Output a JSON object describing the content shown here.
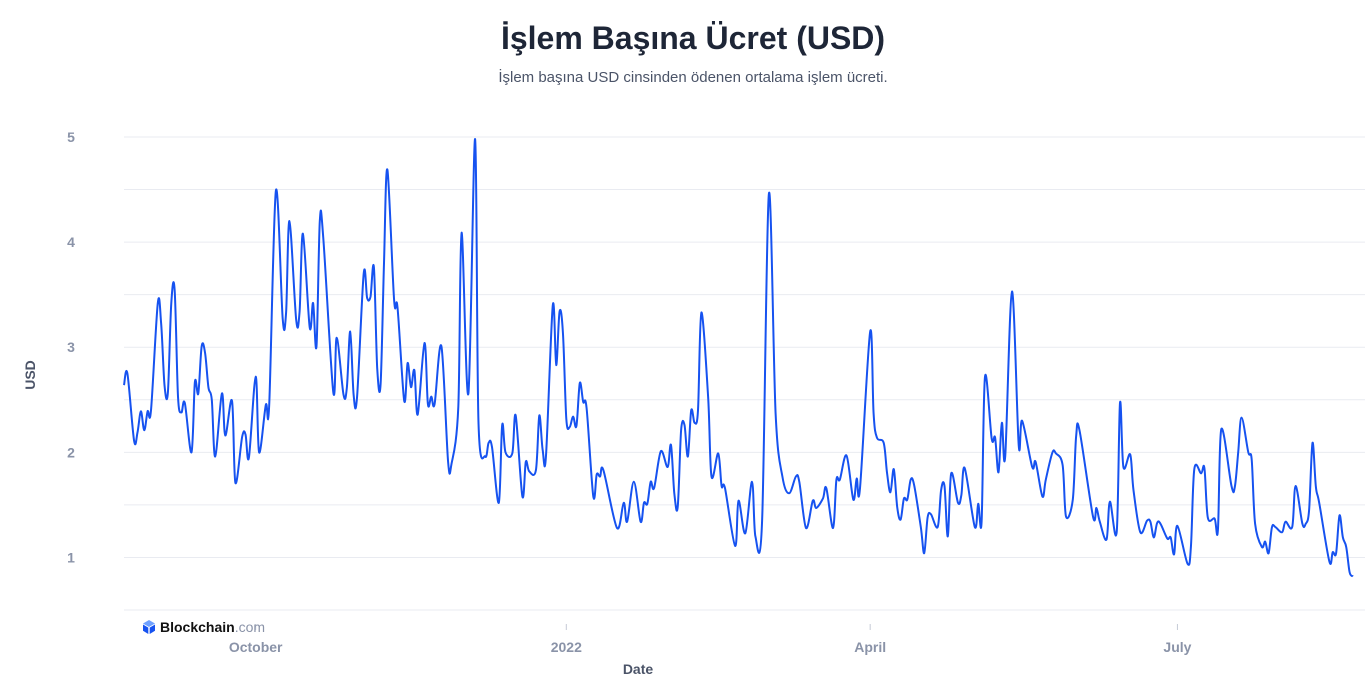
{
  "header": {
    "title": "İşlem Başına Ücret (USD)",
    "subtitle": "İşlem başına USD cinsinden ödenen ortalama işlem ücreti."
  },
  "logo": {
    "brand": "Blockchain",
    "suffix": ".com",
    "icon": "blockchain-cube-icon"
  },
  "colors": {
    "line": "#1652F0",
    "grid": "#e9ebf1",
    "tick_text": "#8a93a8"
  },
  "chart_data": {
    "type": "line",
    "title": "İşlem Başına Ücret (USD)",
    "subtitle": "İşlem başına USD cinsinden ödenen ortalama işlem ücreti.",
    "xlabel": "Date",
    "ylabel": "USD",
    "xlim": [
      "2021-08-23",
      "2022-08-22"
    ],
    "ylim": [
      0.5,
      5
    ],
    "grid": true,
    "y_ticks": [
      "1",
      "2",
      "3",
      "4",
      "5"
    ],
    "x_ticks": [
      {
        "date": "2021-10-01",
        "label": "October"
      },
      {
        "date": "2022-01-01",
        "label": "2022"
      },
      {
        "date": "2022-04-01",
        "label": "April"
      },
      {
        "date": "2022-07-01",
        "label": "July"
      }
    ],
    "series": [
      {
        "points": [
          [
            "2021-08-23",
            2.64
          ],
          [
            "2021-08-24",
            2.75
          ],
          [
            "2021-08-26",
            2.11
          ],
          [
            "2021-08-27",
            2.19
          ],
          [
            "2021-08-28",
            2.39
          ],
          [
            "2021-08-29",
            2.21
          ],
          [
            "2021-08-30",
            2.39
          ],
          [
            "2021-08-31",
            2.4
          ],
          [
            "2021-09-02",
            3.42
          ],
          [
            "2021-09-03",
            3.23
          ],
          [
            "2021-09-04",
            2.64
          ],
          [
            "2021-09-05",
            2.57
          ],
          [
            "2021-09-06",
            3.42
          ],
          [
            "2021-09-07",
            3.55
          ],
          [
            "2021-09-08",
            2.53
          ],
          [
            "2021-09-09",
            2.38
          ],
          [
            "2021-09-10",
            2.47
          ],
          [
            "2021-09-12",
            2.0
          ],
          [
            "2021-09-13",
            2.67
          ],
          [
            "2021-09-14",
            2.56
          ],
          [
            "2021-09-15",
            3.01
          ],
          [
            "2021-09-16",
            2.95
          ],
          [
            "2021-09-17",
            2.62
          ],
          [
            "2021-09-18",
            2.5
          ],
          [
            "2021-09-19",
            1.96
          ],
          [
            "2021-09-21",
            2.56
          ],
          [
            "2021-09-22",
            2.16
          ],
          [
            "2021-09-24",
            2.49
          ],
          [
            "2021-09-25",
            1.71
          ],
          [
            "2021-09-27",
            2.15
          ],
          [
            "2021-09-28",
            2.17
          ],
          [
            "2021-09-29",
            1.95
          ],
          [
            "2021-10-01",
            2.72
          ],
          [
            "2021-10-02",
            2.0
          ],
          [
            "2021-10-04",
            2.45
          ],
          [
            "2021-10-05",
            2.45
          ],
          [
            "2021-10-07",
            4.49
          ],
          [
            "2021-10-09",
            3.27
          ],
          [
            "2021-10-10",
            3.33
          ],
          [
            "2021-10-11",
            4.2
          ],
          [
            "2021-10-13",
            3.26
          ],
          [
            "2021-10-14",
            3.34
          ],
          [
            "2021-10-15",
            4.08
          ],
          [
            "2021-10-17",
            3.19
          ],
          [
            "2021-10-18",
            3.42
          ],
          [
            "2021-10-19",
            3.01
          ],
          [
            "2021-10-20",
            4.2
          ],
          [
            "2021-10-21",
            4.05
          ],
          [
            "2021-10-24",
            2.57
          ],
          [
            "2021-10-25",
            3.09
          ],
          [
            "2021-10-27",
            2.55
          ],
          [
            "2021-10-28",
            2.61
          ],
          [
            "2021-10-29",
            3.15
          ],
          [
            "2021-10-30",
            2.55
          ],
          [
            "2021-10-31",
            2.52
          ],
          [
            "2021-11-02",
            3.7
          ],
          [
            "2021-11-03",
            3.47
          ],
          [
            "2021-11-04",
            3.48
          ],
          [
            "2021-11-05",
            3.76
          ],
          [
            "2021-11-06",
            2.8
          ],
          [
            "2021-11-07",
            2.65
          ],
          [
            "2021-11-08",
            3.8
          ],
          [
            "2021-11-09",
            4.69
          ],
          [
            "2021-11-11",
            3.45
          ],
          [
            "2021-11-12",
            3.38
          ],
          [
            "2021-11-14",
            2.49
          ],
          [
            "2021-11-15",
            2.85
          ],
          [
            "2021-11-16",
            2.62
          ],
          [
            "2021-11-17",
            2.78
          ],
          [
            "2021-11-18",
            2.36
          ],
          [
            "2021-11-20",
            3.04
          ],
          [
            "2021-11-21",
            2.46
          ],
          [
            "2021-11-22",
            2.53
          ],
          [
            "2021-11-23",
            2.46
          ],
          [
            "2021-11-25",
            3.01
          ],
          [
            "2021-11-27",
            1.91
          ],
          [
            "2021-11-28",
            1.89
          ],
          [
            "2021-11-30",
            2.43
          ],
          [
            "2021-12-01",
            4.09
          ],
          [
            "2021-12-03",
            2.56
          ],
          [
            "2021-12-05",
            4.98
          ],
          [
            "2021-12-06",
            2.28
          ],
          [
            "2021-12-08",
            1.96
          ],
          [
            "2021-12-09",
            2.09
          ],
          [
            "2021-12-10",
            2.05
          ],
          [
            "2021-12-12",
            1.52
          ],
          [
            "2021-12-13",
            2.26
          ],
          [
            "2021-12-14",
            2.0
          ],
          [
            "2021-12-16",
            1.99
          ],
          [
            "2021-12-17",
            2.35
          ],
          [
            "2021-12-19",
            1.58
          ],
          [
            "2021-12-20",
            1.91
          ],
          [
            "2021-12-21",
            1.82
          ],
          [
            "2021-12-23",
            1.83
          ],
          [
            "2021-12-24",
            2.35
          ],
          [
            "2021-12-25",
            2.02
          ],
          [
            "2021-12-26",
            1.97
          ],
          [
            "2021-12-28",
            3.4
          ],
          [
            "2021-12-29",
            2.83
          ],
          [
            "2021-12-30",
            3.34
          ],
          [
            "2021-12-31",
            3.14
          ],
          [
            "2022-01-01",
            2.32
          ],
          [
            "2022-01-02",
            2.24
          ],
          [
            "2022-01-03",
            2.34
          ],
          [
            "2022-01-04",
            2.25
          ],
          [
            "2022-01-05",
            2.66
          ],
          [
            "2022-01-06",
            2.48
          ],
          [
            "2022-01-07",
            2.42
          ],
          [
            "2022-01-09",
            1.58
          ],
          [
            "2022-01-10",
            1.79
          ],
          [
            "2022-01-11",
            1.77
          ],
          [
            "2022-01-12",
            1.83
          ],
          [
            "2022-01-16",
            1.28
          ],
          [
            "2022-01-18",
            1.52
          ],
          [
            "2022-01-19",
            1.34
          ],
          [
            "2022-01-21",
            1.72
          ],
          [
            "2022-01-23",
            1.34
          ],
          [
            "2022-01-24",
            1.52
          ],
          [
            "2022-01-25",
            1.51
          ],
          [
            "2022-01-26",
            1.72
          ],
          [
            "2022-01-27",
            1.66
          ],
          [
            "2022-01-29",
            2.01
          ],
          [
            "2022-01-31",
            1.86
          ],
          [
            "2022-02-01",
            2.07
          ],
          [
            "2022-02-02",
            1.61
          ],
          [
            "2022-02-03",
            1.48
          ],
          [
            "2022-02-04",
            2.21
          ],
          [
            "2022-02-05",
            2.26
          ],
          [
            "2022-02-06",
            1.96
          ],
          [
            "2022-02-07",
            2.4
          ],
          [
            "2022-02-08",
            2.28
          ],
          [
            "2022-02-09",
            2.4
          ],
          [
            "2022-02-10",
            3.33
          ],
          [
            "2022-02-12",
            2.53
          ],
          [
            "2022-02-13",
            1.77
          ],
          [
            "2022-02-15",
            1.99
          ],
          [
            "2022-02-16",
            1.68
          ],
          [
            "2022-02-17",
            1.66
          ],
          [
            "2022-02-20",
            1.11
          ],
          [
            "2022-02-21",
            1.54
          ],
          [
            "2022-02-23",
            1.23
          ],
          [
            "2022-02-25",
            1.72
          ],
          [
            "2022-02-26",
            1.2
          ],
          [
            "2022-02-28",
            1.35
          ],
          [
            "2022-03-02",
            4.46
          ],
          [
            "2022-03-04",
            2.37
          ],
          [
            "2022-03-06",
            1.77
          ],
          [
            "2022-03-08",
            1.61
          ],
          [
            "2022-03-10",
            1.77
          ],
          [
            "2022-03-11",
            1.72
          ],
          [
            "2022-03-13",
            1.28
          ],
          [
            "2022-03-15",
            1.54
          ],
          [
            "2022-03-16",
            1.47
          ],
          [
            "2022-03-18",
            1.56
          ],
          [
            "2022-03-19",
            1.66
          ],
          [
            "2022-03-21",
            1.28
          ],
          [
            "2022-03-22",
            1.74
          ],
          [
            "2022-03-23",
            1.74
          ],
          [
            "2022-03-25",
            1.97
          ],
          [
            "2022-03-27",
            1.55
          ],
          [
            "2022-03-28",
            1.75
          ],
          [
            "2022-03-29",
            1.66
          ],
          [
            "2022-04-01",
            3.15
          ],
          [
            "2022-04-02",
            2.37
          ],
          [
            "2022-04-03",
            2.14
          ],
          [
            "2022-04-05",
            2.09
          ],
          [
            "2022-04-06",
            1.8
          ],
          [
            "2022-04-07",
            1.62
          ],
          [
            "2022-04-08",
            1.84
          ],
          [
            "2022-04-09",
            1.48
          ],
          [
            "2022-04-10",
            1.36
          ],
          [
            "2022-04-11",
            1.56
          ],
          [
            "2022-04-12",
            1.55
          ],
          [
            "2022-04-13",
            1.74
          ],
          [
            "2022-04-14",
            1.69
          ],
          [
            "2022-04-16",
            1.29
          ],
          [
            "2022-04-17",
            1.04
          ],
          [
            "2022-04-18",
            1.38
          ],
          [
            "2022-04-19",
            1.41
          ],
          [
            "2022-04-21",
            1.29
          ],
          [
            "2022-04-22",
            1.64
          ],
          [
            "2022-04-23",
            1.68
          ],
          [
            "2022-04-24",
            1.2
          ],
          [
            "2022-04-25",
            1.8
          ],
          [
            "2022-04-27",
            1.52
          ],
          [
            "2022-04-28",
            1.59
          ],
          [
            "2022-04-29",
            1.85
          ],
          [
            "2022-05-02",
            1.29
          ],
          [
            "2022-05-03",
            1.51
          ],
          [
            "2022-05-04",
            1.34
          ],
          [
            "2022-05-05",
            2.72
          ],
          [
            "2022-05-07",
            2.13
          ],
          [
            "2022-05-08",
            2.14
          ],
          [
            "2022-05-09",
            1.81
          ],
          [
            "2022-05-10",
            2.28
          ],
          [
            "2022-05-11",
            1.96
          ],
          [
            "2022-05-13",
            3.53
          ],
          [
            "2022-05-15",
            2.07
          ],
          [
            "2022-05-16",
            2.3
          ],
          [
            "2022-05-19",
            1.86
          ],
          [
            "2022-05-20",
            1.91
          ],
          [
            "2022-05-22",
            1.58
          ],
          [
            "2022-05-23",
            1.74
          ],
          [
            "2022-05-25",
            2.0
          ],
          [
            "2022-05-26",
            1.99
          ],
          [
            "2022-05-28",
            1.88
          ],
          [
            "2022-05-29",
            1.39
          ],
          [
            "2022-05-31",
            1.55
          ],
          [
            "2022-06-01",
            2.15
          ],
          [
            "2022-06-02",
            2.21
          ],
          [
            "2022-06-06",
            1.39
          ],
          [
            "2022-06-07",
            1.47
          ],
          [
            "2022-06-08",
            1.34
          ],
          [
            "2022-06-10",
            1.17
          ],
          [
            "2022-06-11",
            1.53
          ],
          [
            "2022-06-13",
            1.24
          ],
          [
            "2022-06-14",
            2.47
          ],
          [
            "2022-06-15",
            1.86
          ],
          [
            "2022-06-17",
            1.98
          ],
          [
            "2022-06-18",
            1.64
          ],
          [
            "2022-06-20",
            1.24
          ],
          [
            "2022-06-22",
            1.35
          ],
          [
            "2022-06-23",
            1.34
          ],
          [
            "2022-06-24",
            1.19
          ],
          [
            "2022-06-25",
            1.33
          ],
          [
            "2022-06-26",
            1.32
          ],
          [
            "2022-06-28",
            1.18
          ],
          [
            "2022-06-29",
            1.19
          ],
          [
            "2022-06-30",
            1.03
          ],
          [
            "2022-07-01",
            1.3
          ],
          [
            "2022-07-04",
            0.94
          ],
          [
            "2022-07-05",
            1.1
          ],
          [
            "2022-07-06",
            1.84
          ],
          [
            "2022-07-08",
            1.8
          ],
          [
            "2022-07-09",
            1.85
          ],
          [
            "2022-07-10",
            1.38
          ],
          [
            "2022-07-12",
            1.37
          ],
          [
            "2022-07-13",
            1.26
          ],
          [
            "2022-07-14",
            2.22
          ],
          [
            "2022-07-17",
            1.68
          ],
          [
            "2022-07-18",
            1.67
          ],
          [
            "2022-07-19",
            2.0
          ],
          [
            "2022-07-20",
            2.33
          ],
          [
            "2022-07-22",
            2.0
          ],
          [
            "2022-07-23",
            1.93
          ],
          [
            "2022-07-24",
            1.32
          ],
          [
            "2022-07-26",
            1.1
          ],
          [
            "2022-07-27",
            1.15
          ],
          [
            "2022-07-28",
            1.04
          ],
          [
            "2022-07-29",
            1.29
          ],
          [
            "2022-07-30",
            1.29
          ],
          [
            "2022-08-01",
            1.24
          ],
          [
            "2022-08-02",
            1.34
          ],
          [
            "2022-08-04",
            1.29
          ],
          [
            "2022-08-05",
            1.68
          ],
          [
            "2022-08-07",
            1.32
          ],
          [
            "2022-08-08",
            1.32
          ],
          [
            "2022-08-09",
            1.45
          ],
          [
            "2022-08-10",
            2.09
          ],
          [
            "2022-08-11",
            1.67
          ],
          [
            "2022-08-12",
            1.52
          ],
          [
            "2022-08-15",
            0.96
          ],
          [
            "2022-08-16",
            1.05
          ],
          [
            "2022-08-17",
            1.04
          ],
          [
            "2022-08-18",
            1.4
          ],
          [
            "2022-08-19",
            1.19
          ],
          [
            "2022-08-20",
            1.1
          ],
          [
            "2022-08-21",
            0.86
          ],
          [
            "2022-08-22",
            0.82
          ]
        ]
      }
    ]
  }
}
